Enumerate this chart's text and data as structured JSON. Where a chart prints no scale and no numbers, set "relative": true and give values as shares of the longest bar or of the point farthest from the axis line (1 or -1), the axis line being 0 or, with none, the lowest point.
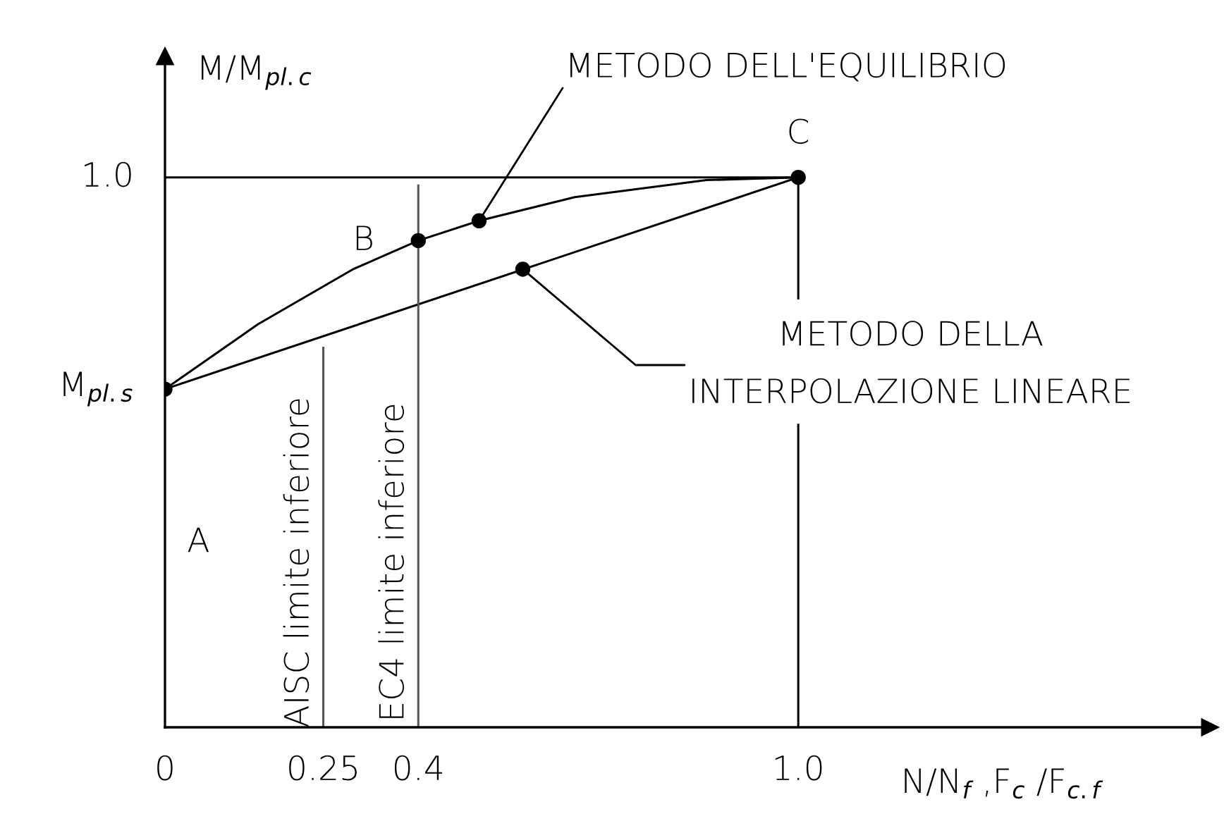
{
  "chart_data": {
    "type": "line",
    "xlabel": "N/N$_{f}$ ,F$_{c}$ /F$_{c.f}$",
    "ylabel": "M/M$_{pl.c}$",
    "relative": true,
    "series": [
      {
        "color": "#000000",
        "x": [
          0,
          0.147,
          0.297,
          0.4,
          0.496,
          0.647,
          0.855,
          1.0
        ],
        "values": [
          0.615,
          0.733,
          0.833,
          0.885,
          0.921,
          0.964,
          0.995,
          1.0
        ]
      },
      {
        "color": "#000000",
        "x": [
          0,
          1.0
        ],
        "values": [
          0.615,
          1.0
        ]
      },
      {
        "color": "#000000",
        "x": [
          0,
          1.0
        ],
        "values": [
          1.0,
          1.0
        ]
      },
      {
        "color": "#000000",
        "x": [
          1.0,
          1.0
        ],
        "values": [
          0,
          0.55
        ]
      },
      {
        "color": "#000000",
        "x": [
          1.0,
          1.0
        ],
        "values": [
          0.78,
          1.0
        ]
      },
      {
        "color": "#555555",
        "x": [
          0.25,
          0.25
        ],
        "values": [
          0,
          0.69
        ]
      },
      {
        "color": "#555555",
        "x": [
          0.4,
          0.4
        ],
        "values": [
          0,
          0.985
        ]
      },
      {
        "type": "scatter",
        "color": "#000000",
        "x": [
          0,
          0.4,
          0.496,
          0.565,
          1.0
        ],
        "values": [
          0.615,
          0.885,
          0.921,
          0.833,
          1.0
        ]
      }
    ],
    "xlim": [
      0,
      1.65
    ],
    "xticks": [
      0,
      0.25,
      0.4,
      {
        "value": 1.0,
        "label": "1.0"
      }
    ],
    "line_style": "solid",
    "annotations": [
      "A",
      "B",
      "C",
      {
        "text": "METODO DELL'EQUILIBRIO",
        "x": 0.496,
        "y": 0.921
      },
      {
        "text": "METODO DELLA\nINTERPOLAZIONE LINEARE",
        "x": 0.565,
        "y": 0.833
      },
      {
        "text": "AISC limite inferiore",
        "x": 0.25,
        "y": 0.3
      },
      {
        "text": "EC4 limite inferiore",
        "x": 0.4,
        "y": 0.3
      },
      {
        "text": "1.0",
        "x": 0,
        "y": 1.0
      },
      {
        "text": "M$_{pl.s}$",
        "x": 0,
        "y": 0.615
      }
    ]
  }
}
